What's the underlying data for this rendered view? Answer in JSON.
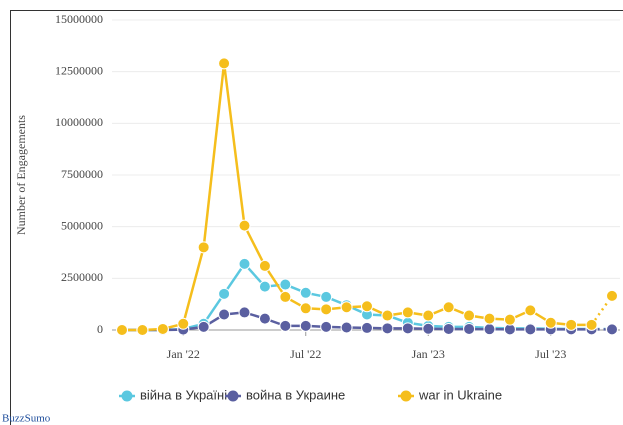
{
  "chart_data": {
    "type": "line",
    "y_label": "Number of Engagements",
    "categories": [
      null,
      null,
      null,
      "Jan '22",
      null,
      null,
      null,
      null,
      null,
      "Jul '22",
      null,
      null,
      null,
      null,
      null,
      "Jan '23",
      null,
      null,
      null,
      null,
      null,
      "Jul '23",
      null,
      null,
      null
    ],
    "series": [
      {
        "name": "війна в Україні",
        "color": "#5bc8e0",
        "values": [
          0,
          0,
          0,
          50000,
          300000,
          1750000,
          3200000,
          2100000,
          2200000,
          1800000,
          1600000,
          1200000,
          750000,
          700000,
          350000,
          200000,
          150000,
          150000,
          100000,
          80000,
          80000,
          60000,
          50000,
          50000,
          50000
        ]
      },
      {
        "name": "война в Украине",
        "color": "#5a5fa0",
        "values": [
          0,
          0,
          0,
          20000,
          150000,
          750000,
          850000,
          550000,
          200000,
          200000,
          150000,
          120000,
          100000,
          80000,
          80000,
          60000,
          50000,
          50000,
          40000,
          30000,
          30000,
          30000,
          30000,
          30000,
          30000
        ]
      },
      {
        "name": "war in Ukraine",
        "color": "#f5be1c",
        "values": [
          0,
          0,
          50000,
          300000,
          4000000,
          12900000,
          5050000,
          3100000,
          1600000,
          1050000,
          1000000,
          1100000,
          1150000,
          700000,
          850000,
          700000,
          1100000,
          700000,
          550000,
          500000,
          950000,
          350000,
          250000,
          250000,
          1650000
        ]
      }
    ],
    "ylim": [
      0,
      15000000
    ],
    "yticks": [
      0,
      2500000,
      5000000,
      7500000,
      10000000,
      12500000,
      15000000
    ],
    "grid": true,
    "legend": "bottom",
    "source": "BuzzSumo"
  }
}
